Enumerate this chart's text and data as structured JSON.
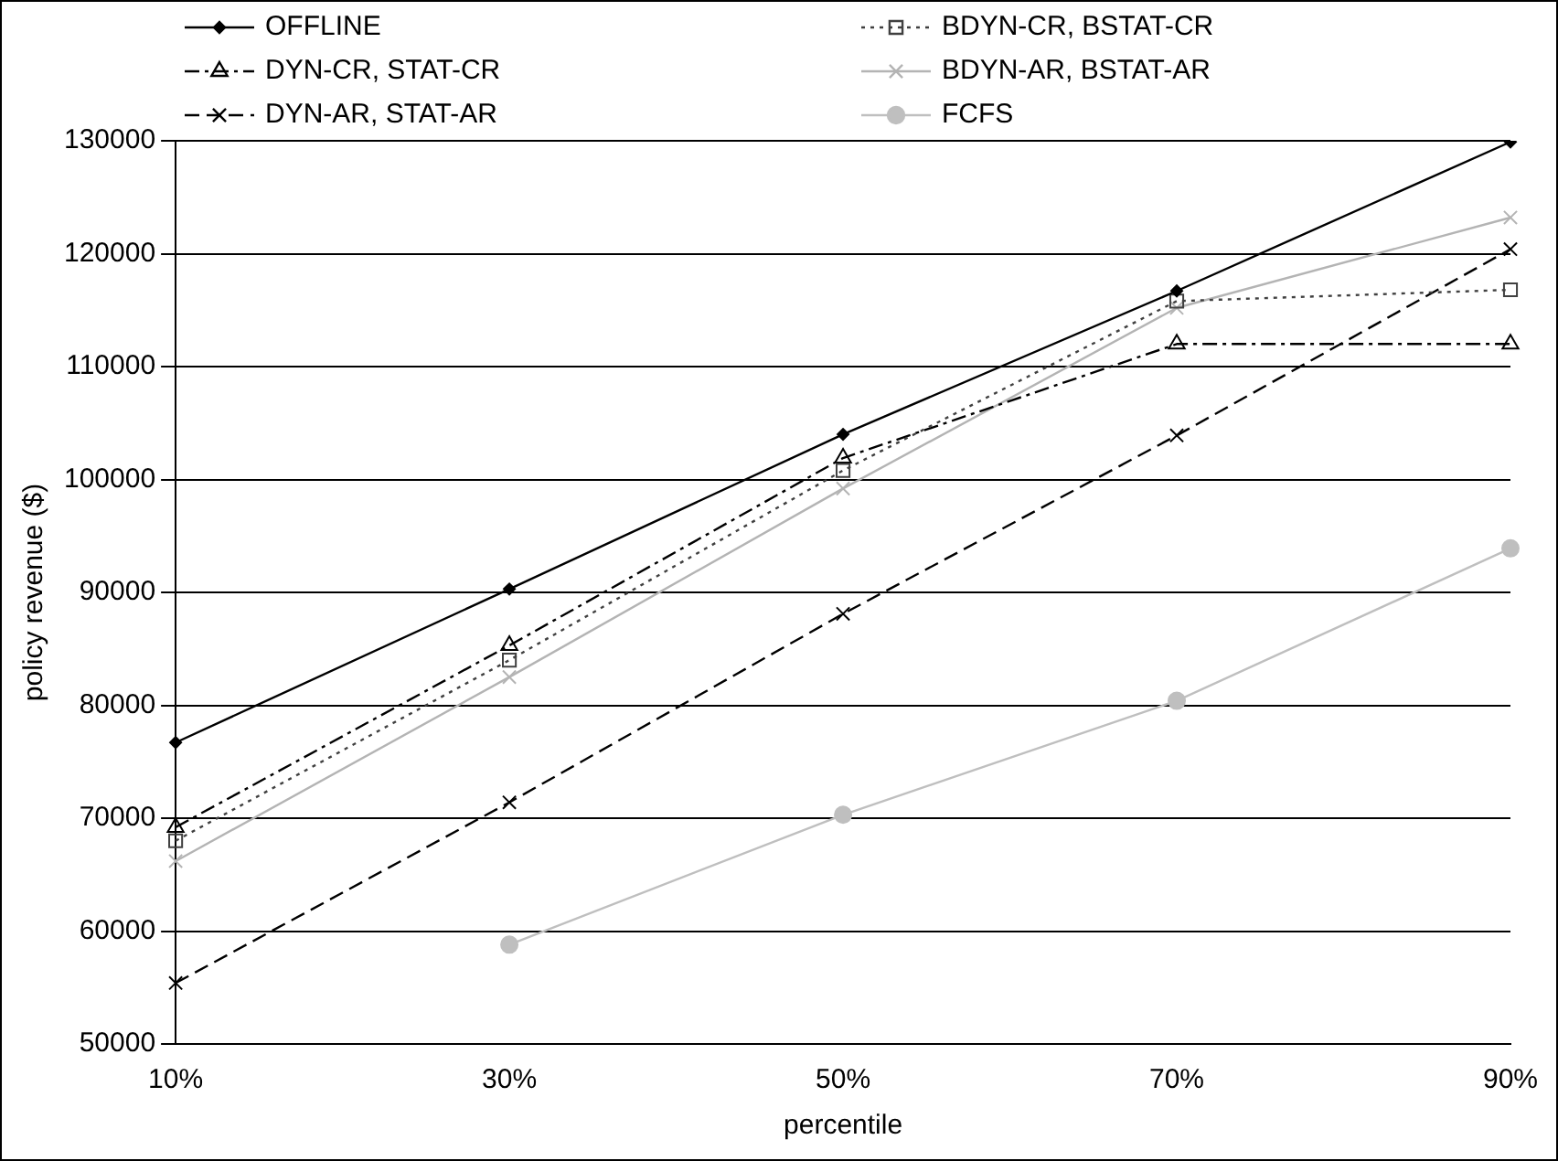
{
  "chart_data": {
    "type": "line",
    "xlabel": "percentile",
    "ylabel": "policy revenue ($)",
    "categories": [
      "10%",
      "30%",
      "50%",
      "70%",
      "90%"
    ],
    "ylim": [
      50000,
      130000
    ],
    "yticks": [
      50000,
      60000,
      70000,
      80000,
      90000,
      100000,
      110000,
      120000,
      130000
    ],
    "grid": "y",
    "legend": "top",
    "series": [
      {
        "name": "OFFLINE",
        "color": "#000000",
        "marker": "diamond",
        "line_style": "solid",
        "values": [
          76700,
          90300,
          104000,
          116700,
          129900
        ]
      },
      {
        "name": "BDYN-CR, BSTAT-CR",
        "color": "#404040",
        "marker": "square",
        "line_style": "dotted",
        "values": [
          68000,
          84000,
          100800,
          115800,
          116800
        ]
      },
      {
        "name": "DYN-CR, STAT-CR",
        "color": "#000000",
        "marker": "triangle",
        "line_style": "dashdot",
        "values": [
          69200,
          85300,
          101900,
          112000,
          112000
        ]
      },
      {
        "name": "BDYN-AR, BSTAT-AR",
        "color": "#b4b4b4",
        "marker": "cross",
        "line_style": "solid",
        "values": [
          66200,
          82500,
          99200,
          115200,
          123200
        ]
      },
      {
        "name": "DYN-AR, STAT-AR",
        "color": "#000000",
        "marker": "cross",
        "line_style": "dashed",
        "values": [
          55400,
          71400,
          88100,
          103900,
          120400
        ]
      },
      {
        "name": "FCFS",
        "color": "#bfbfbf",
        "marker": "circle",
        "line_style": "solid",
        "values": [
          null,
          58800,
          70300,
          80400,
          93900
        ]
      }
    ]
  }
}
